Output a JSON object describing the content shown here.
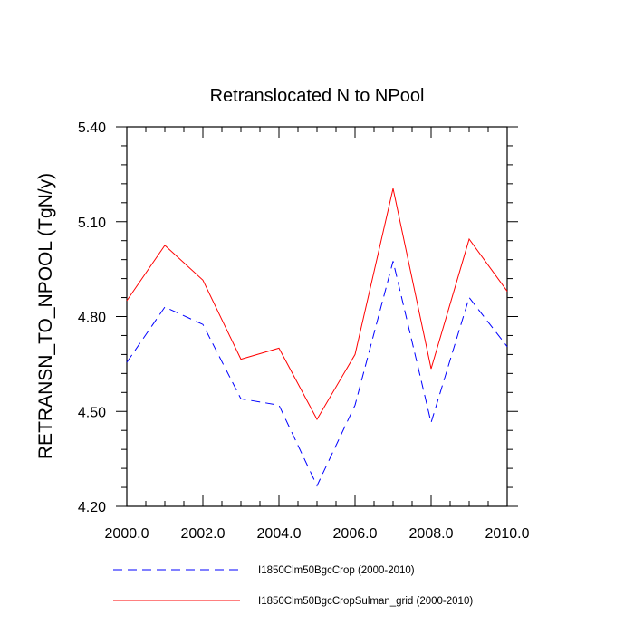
{
  "chart_data": {
    "type": "line",
    "title": "Retranslocated N to NPool",
    "xlabel": "",
    "ylabel": "RETRANSN_TO_NPOOL  (TgN/y)",
    "xlim": [
      2000,
      2010
    ],
    "ylim": [
      4.2,
      5.4
    ],
    "x_ticks": [
      2000,
      2002,
      2004,
      2006,
      2008,
      2010
    ],
    "x_tick_labels": [
      "2000.0",
      "2002.0",
      "2004.0",
      "2006.0",
      "2008.0",
      "2010.0"
    ],
    "y_ticks": [
      4.2,
      4.5,
      4.8,
      5.1,
      5.4
    ],
    "y_tick_labels": [
      "4.20",
      "4.50",
      "4.80",
      "5.10",
      "5.40"
    ],
    "x": [
      2000,
      2001,
      2002,
      2003,
      2004,
      2005,
      2006,
      2007,
      2008,
      2009,
      2010
    ],
    "series": [
      {
        "name": "I1850Clm50BgcCrop (2000-2010)",
        "color": "#0000ff",
        "dash": "dashed",
        "values": [
          4.655,
          4.83,
          4.775,
          4.54,
          4.52,
          4.265,
          4.52,
          4.975,
          4.465,
          4.86,
          4.705
        ]
      },
      {
        "name": "I1850Clm50BgcCropSulman_grid (2000-2010)",
        "color": "#ff0000",
        "dash": "solid",
        "values": [
          4.85,
          5.025,
          4.915,
          4.665,
          4.7,
          4.475,
          4.68,
          5.205,
          4.635,
          5.045,
          4.88
        ]
      }
    ],
    "grid": false,
    "legend_position": "bottom"
  }
}
